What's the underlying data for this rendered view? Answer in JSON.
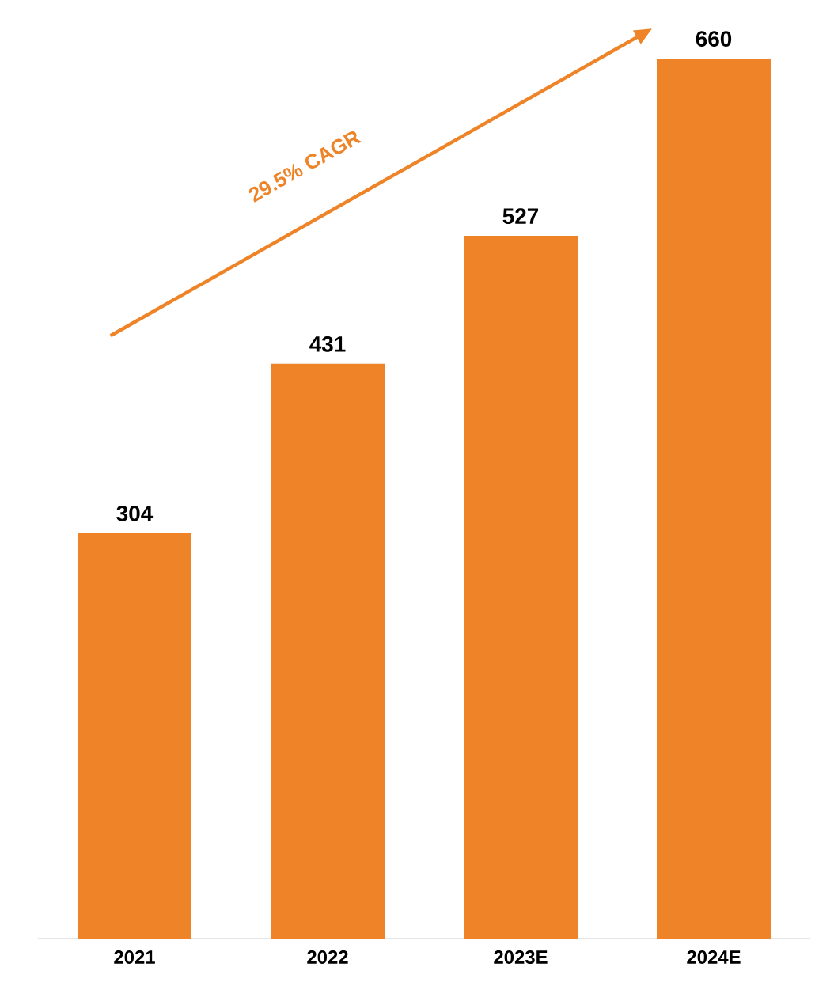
{
  "chart_data": {
    "type": "bar",
    "categories": [
      "2021",
      "2022",
      "2023E",
      "2024E"
    ],
    "values": [
      304,
      431,
      527,
      660
    ],
    "color": "#ee8427",
    "data_labels": true,
    "ylim": [
      0,
      660
    ],
    "tick_labels": "x",
    "annotations": [
      "29.5% CAGR"
    ]
  }
}
